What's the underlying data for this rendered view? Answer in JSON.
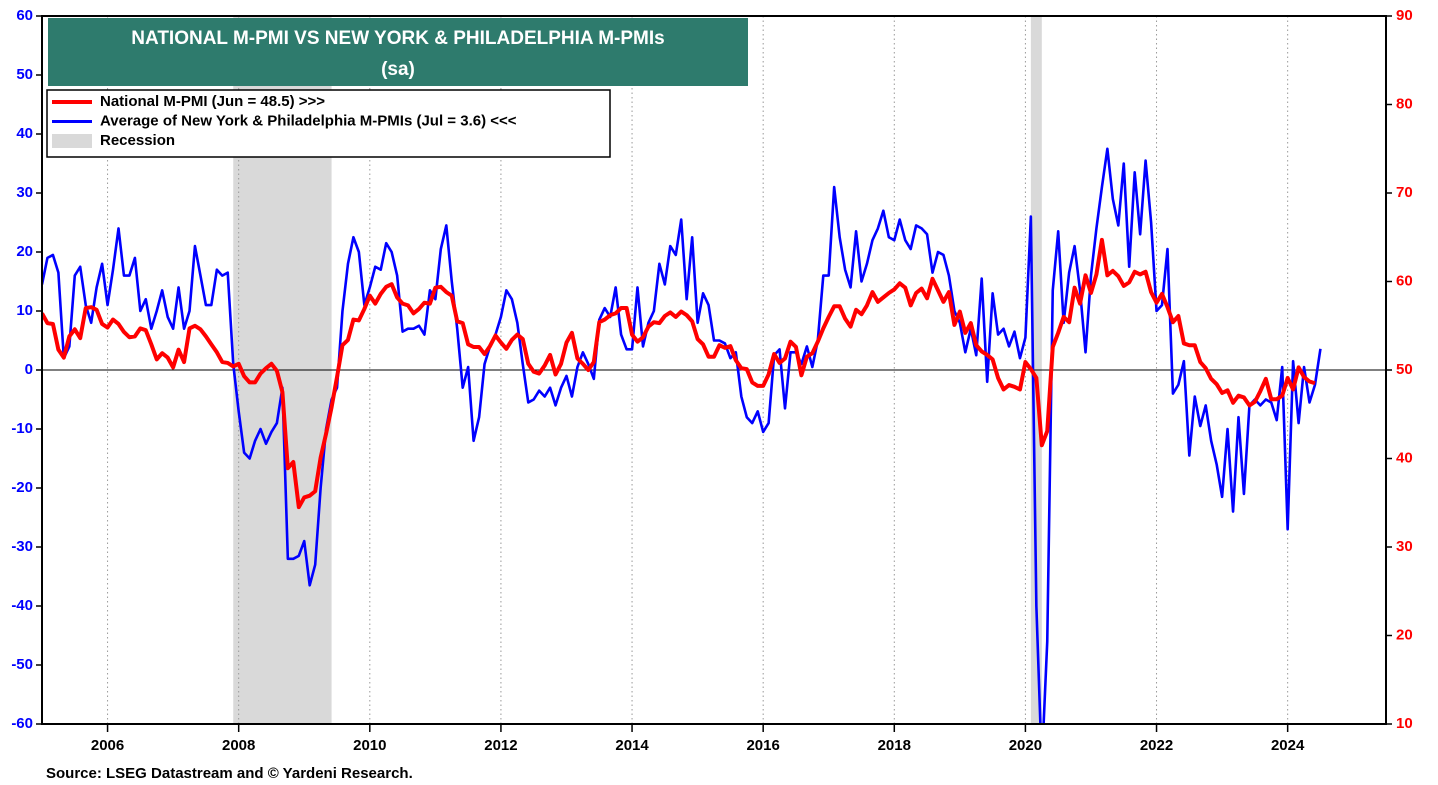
{
  "chart_data": {
    "type": "line",
    "title": "NATIONAL M-PMI VS NEW YORK & PHILADELPHIA M-PMIs",
    "subtitle": "(sa)",
    "source": "Source: LSEG Datastream and © Yardeni Research.",
    "recession_label": "Recession",
    "recessions": [
      [
        2007.917,
        2009.417
      ],
      [
        2020.083,
        2020.25
      ]
    ],
    "hline": 0,
    "grid": true,
    "xlim": [
      2005,
      2025.5
    ],
    "xticks": [
      2006,
      2008,
      2010,
      2012,
      2014,
      2016,
      2018,
      2020,
      2022,
      2024
    ],
    "ylim": [
      -60,
      60
    ],
    "yticks": [
      -60,
      -50,
      -40,
      -30,
      -20,
      -10,
      0,
      10,
      20,
      30,
      40,
      50,
      60
    ],
    "y2lim": [
      10,
      90
    ],
    "y2ticks": [
      10,
      20,
      30,
      40,
      50,
      60,
      70,
      80,
      90
    ],
    "x": [
      2005.0,
      2005.083,
      2005.167,
      2005.25,
      2005.333,
      2005.417,
      2005.5,
      2005.583,
      2005.667,
      2005.75,
      2005.833,
      2005.917,
      2006.0,
      2006.083,
      2006.167,
      2006.25,
      2006.333,
      2006.417,
      2006.5,
      2006.583,
      2006.667,
      2006.75,
      2006.833,
      2006.917,
      2007.0,
      2007.083,
      2007.167,
      2007.25,
      2007.333,
      2007.417,
      2007.5,
      2007.583,
      2007.667,
      2007.75,
      2007.833,
      2007.917,
      2008.0,
      2008.083,
      2008.167,
      2008.25,
      2008.333,
      2008.417,
      2008.5,
      2008.583,
      2008.667,
      2008.75,
      2008.833,
      2008.917,
      2009.0,
      2009.083,
      2009.167,
      2009.25,
      2009.333,
      2009.417,
      2009.5,
      2009.583,
      2009.667,
      2009.75,
      2009.833,
      2009.917,
      2010.0,
      2010.083,
      2010.167,
      2010.25,
      2010.333,
      2010.417,
      2010.5,
      2010.583,
      2010.667,
      2010.75,
      2010.833,
      2010.917,
      2011.0,
      2011.083,
      2011.167,
      2011.25,
      2011.333,
      2011.417,
      2011.5,
      2011.583,
      2011.667,
      2011.75,
      2011.833,
      2011.917,
      2012.0,
      2012.083,
      2012.167,
      2012.25,
      2012.333,
      2012.417,
      2012.5,
      2012.583,
      2012.667,
      2012.75,
      2012.833,
      2012.917,
      2013.0,
      2013.083,
      2013.167,
      2013.25,
      2013.333,
      2013.417,
      2013.5,
      2013.583,
      2013.667,
      2013.75,
      2013.833,
      2013.917,
      2014.0,
      2014.083,
      2014.167,
      2014.25,
      2014.333,
      2014.417,
      2014.5,
      2014.583,
      2014.667,
      2014.75,
      2014.833,
      2014.917,
      2015.0,
      2015.083,
      2015.167,
      2015.25,
      2015.333,
      2015.417,
      2015.5,
      2015.583,
      2015.667,
      2015.75,
      2015.833,
      2015.917,
      2016.0,
      2016.083,
      2016.167,
      2016.25,
      2016.333,
      2016.417,
      2016.5,
      2016.583,
      2016.667,
      2016.75,
      2016.833,
      2016.917,
      2017.0,
      2017.083,
      2017.167,
      2017.25,
      2017.333,
      2017.417,
      2017.5,
      2017.583,
      2017.667,
      2017.75,
      2017.833,
      2017.917,
      2018.0,
      2018.083,
      2018.167,
      2018.25,
      2018.333,
      2018.417,
      2018.5,
      2018.583,
      2018.667,
      2018.75,
      2018.833,
      2018.917,
      2019.0,
      2019.083,
      2019.167,
      2019.25,
      2019.333,
      2019.417,
      2019.5,
      2019.583,
      2019.667,
      2019.75,
      2019.833,
      2019.917,
      2020.0,
      2020.083,
      2020.167,
      2020.25,
      2020.333,
      2020.417,
      2020.5,
      2020.583,
      2020.667,
      2020.75,
      2020.833,
      2020.917,
      2021.0,
      2021.083,
      2021.167,
      2021.25,
      2021.333,
      2021.417,
      2021.5,
      2021.583,
      2021.667,
      2021.75,
      2021.833,
      2021.917,
      2022.0,
      2022.083,
      2022.167,
      2022.25,
      2022.333,
      2022.417,
      2022.5,
      2022.583,
      2022.667,
      2022.75,
      2022.833,
      2022.917,
      2023.0,
      2023.083,
      2023.167,
      2023.25,
      2023.333,
      2023.417,
      2023.5,
      2023.583,
      2023.667,
      2023.75,
      2023.833,
      2023.917,
      2024.0,
      2024.083,
      2024.167,
      2024.25,
      2024.333,
      2024.417,
      2024.5
    ],
    "series": [
      {
        "name": "National M-PMI (Jun = 48.5) >>>",
        "color": "#ff0000",
        "axis": "y2",
        "values": [
          56.4,
          55.3,
          55.2,
          52.3,
          51.4,
          53.8,
          54.6,
          53.6,
          57.0,
          57.1,
          56.8,
          55.2,
          54.8,
          55.7,
          55.2,
          54.3,
          53.7,
          53.8,
          54.7,
          54.5,
          52.9,
          51.2,
          51.9,
          51.4,
          50.3,
          52.3,
          50.9,
          54.7,
          55.0,
          54.6,
          53.8,
          52.9,
          52.0,
          50.9,
          50.8,
          50.4,
          50.7,
          49.3,
          48.6,
          48.6,
          49.6,
          50.2,
          50.7,
          49.9,
          47.5,
          38.9,
          39.6,
          34.5,
          35.6,
          35.8,
          36.3,
          40.1,
          42.8,
          45.8,
          49.2,
          52.8,
          53.4,
          55.7,
          55.6,
          56.9,
          58.4,
          57.5,
          58.6,
          59.4,
          59.7,
          58.2,
          57.5,
          57.3,
          56.4,
          56.9,
          57.6,
          57.5,
          59.3,
          59.4,
          58.8,
          58.4,
          55.5,
          55.3,
          52.9,
          52.6,
          52.6,
          51.8,
          52.7,
          53.9,
          53.1,
          52.4,
          53.4,
          54.0,
          53.5,
          50.7,
          49.8,
          49.6,
          50.5,
          51.7,
          49.5,
          50.7,
          53.1,
          54.2,
          51.3,
          50.7,
          50.0,
          50.9,
          55.4,
          55.7,
          56.2,
          56.4,
          57.0,
          57.0,
          54.0,
          53.2,
          53.7,
          54.9,
          55.4,
          55.3,
          56.1,
          56.5,
          56.0,
          56.6,
          56.2,
          55.5,
          53.5,
          52.9,
          51.5,
          51.5,
          52.8,
          52.5,
          52.7,
          51.1,
          50.2,
          50.1,
          48.6,
          48.2,
          48.2,
          49.5,
          51.8,
          50.8,
          51.3,
          53.2,
          52.6,
          49.4,
          51.5,
          51.9,
          53.2,
          54.7,
          56.0,
          57.2,
          57.2,
          55.8,
          54.9,
          56.8,
          56.3,
          57.3,
          58.8,
          57.7,
          58.2,
          58.7,
          59.1,
          59.8,
          59.3,
          57.3,
          58.7,
          59.2,
          58.1,
          60.3,
          59.0,
          57.7,
          58.8,
          55.1,
          56.6,
          54.2,
          55.3,
          52.8,
          52.1,
          51.7,
          51.2,
          49.1,
          47.8,
          48.3,
          48.1,
          47.8,
          50.9,
          50.1,
          49.1,
          41.5,
          43.1,
          52.6,
          54.2,
          56.0,
          55.4,
          59.3,
          57.5,
          60.7,
          58.7,
          60.8,
          64.7,
          60.7,
          61.2,
          60.6,
          59.5,
          59.9,
          61.1,
          60.8,
          61.1,
          58.8,
          57.6,
          58.6,
          57.1,
          55.4,
          56.1,
          53.0,
          52.8,
          52.8,
          50.9,
          50.2,
          49.0,
          48.4,
          47.4,
          47.7,
          46.3,
          47.1,
          46.9,
          46.0,
          46.4,
          47.6,
          49.0,
          46.7,
          46.7,
          47.1,
          49.1,
          47.8,
          50.3,
          49.2,
          48.7,
          48.5,
          null
        ]
      },
      {
        "name": "Average of New York & Philadelphia M-PMIs (Jul = 3.6) <<<",
        "color": "#0000ff",
        "axis": "y",
        "values": [
          14.5,
          19,
          19.5,
          16.5,
          2,
          4,
          16,
          17.5,
          11,
          8,
          14,
          18,
          11,
          17,
          24,
          16,
          16,
          19,
          10,
          12,
          7,
          10,
          13.5,
          9,
          7,
          14,
          7,
          10,
          21,
          16,
          11,
          11,
          17,
          16,
          16.5,
          1,
          -7,
          -14,
          -15,
          -12,
          -10,
          -12.5,
          -10.5,
          -9,
          -3,
          -32,
          -32,
          -31.5,
          -29,
          -36.5,
          -33,
          -20,
          -10,
          -5,
          -3,
          10,
          18,
          22.5,
          20,
          11,
          14,
          17.5,
          17,
          21.5,
          20,
          16,
          6.5,
          7,
          7,
          7.5,
          6,
          13.5,
          12,
          20.5,
          24.5,
          15,
          7,
          -3,
          0.5,
          -12,
          -8,
          1,
          4,
          6,
          9,
          13.5,
          12,
          8,
          1,
          -5.5,
          -5,
          -3.5,
          -4.5,
          -3,
          -6,
          -3,
          -1,
          -4.5,
          0.5,
          3,
          1,
          -1.5,
          8.5,
          10.5,
          9,
          14,
          6,
          3.5,
          3.5,
          14,
          4,
          8,
          10,
          18,
          14.5,
          21,
          19.5,
          25.5,
          12,
          22.5,
          8,
          13,
          11,
          5,
          5,
          4.5,
          2,
          3,
          -4.5,
          -8,
          -9,
          -7,
          -10.5,
          -9,
          2.5,
          3.5,
          -6.5,
          3,
          3,
          1,
          4,
          0.5,
          5,
          16,
          16,
          31,
          22.5,
          17,
          14,
          23.5,
          15,
          18,
          22,
          24,
          27,
          22.5,
          22,
          25.5,
          22,
          20.5,
          24.5,
          24,
          23,
          16.5,
          20,
          19.5,
          16,
          10,
          8,
          3,
          7,
          2.5,
          15.5,
          -2,
          13,
          6,
          7,
          4,
          6.5,
          2,
          5.5,
          26,
          -40,
          -67,
          -46,
          13.5,
          23.5,
          8,
          16.5,
          21,
          13.5,
          3,
          16,
          24,
          31,
          37.5,
          29,
          24.5,
          35,
          17.5,
          33.5,
          23,
          35.5,
          25,
          10,
          11,
          20.5,
          -4,
          -2.5,
          1.5,
          -14.5,
          -4.5,
          -9.5,
          -6,
          -12,
          -16,
          -21.5,
          -10,
          -24,
          -8,
          -21,
          -6,
          -5,
          -6,
          -5,
          -5.5,
          -8.5,
          0.5,
          -27,
          1.5,
          -9,
          0.5,
          -5.5,
          -2.5,
          3.6
        ]
      }
    ]
  }
}
